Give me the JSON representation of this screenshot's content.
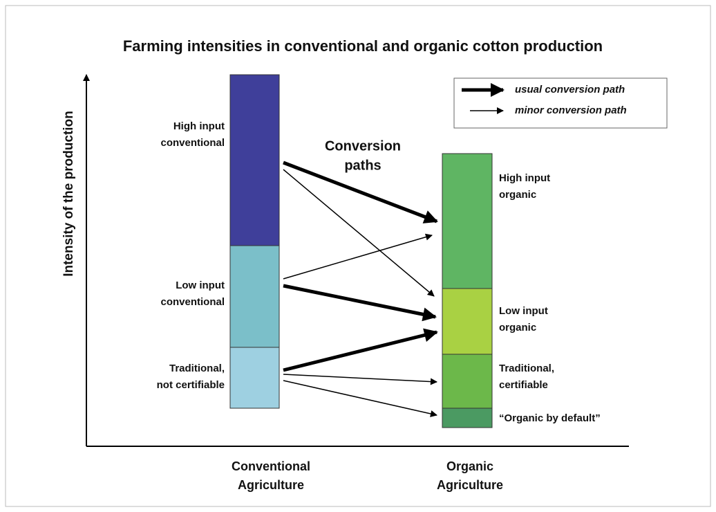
{
  "title": "Farming intensities in conventional and organic cotton production",
  "y_axis_label": "Intensity of the production",
  "annotation": [
    "Conversion",
    "paths"
  ],
  "legend": [
    {
      "label": "usual conversion path"
    },
    {
      "label": "minor conversion path"
    }
  ],
  "columns": [
    {
      "label": [
        "Conventional",
        "Agriculture"
      ],
      "segments": [
        {
          "label": [
            "High input",
            "conventional"
          ],
          "color": "#3f3f9a"
        },
        {
          "label": [
            "Low input",
            "conventional"
          ],
          "color": "#7bbfc9"
        },
        {
          "label": [
            "Traditional,",
            "not certifiable"
          ],
          "color": "#9ed0e1"
        }
      ]
    },
    {
      "label": [
        "Organic",
        "Agriculture"
      ],
      "segments": [
        {
          "label": [
            "High input",
            "organic"
          ],
          "color": "#5fb563"
        },
        {
          "label": [
            "Low input",
            "organic"
          ],
          "color": "#a9d143"
        },
        {
          "label": [
            "Traditional,",
            "certifiable"
          ],
          "color": "#6cb84a"
        },
        {
          "label": [
            "“Organic by default”"
          ],
          "color": "#4b9a62"
        }
      ]
    }
  ]
}
